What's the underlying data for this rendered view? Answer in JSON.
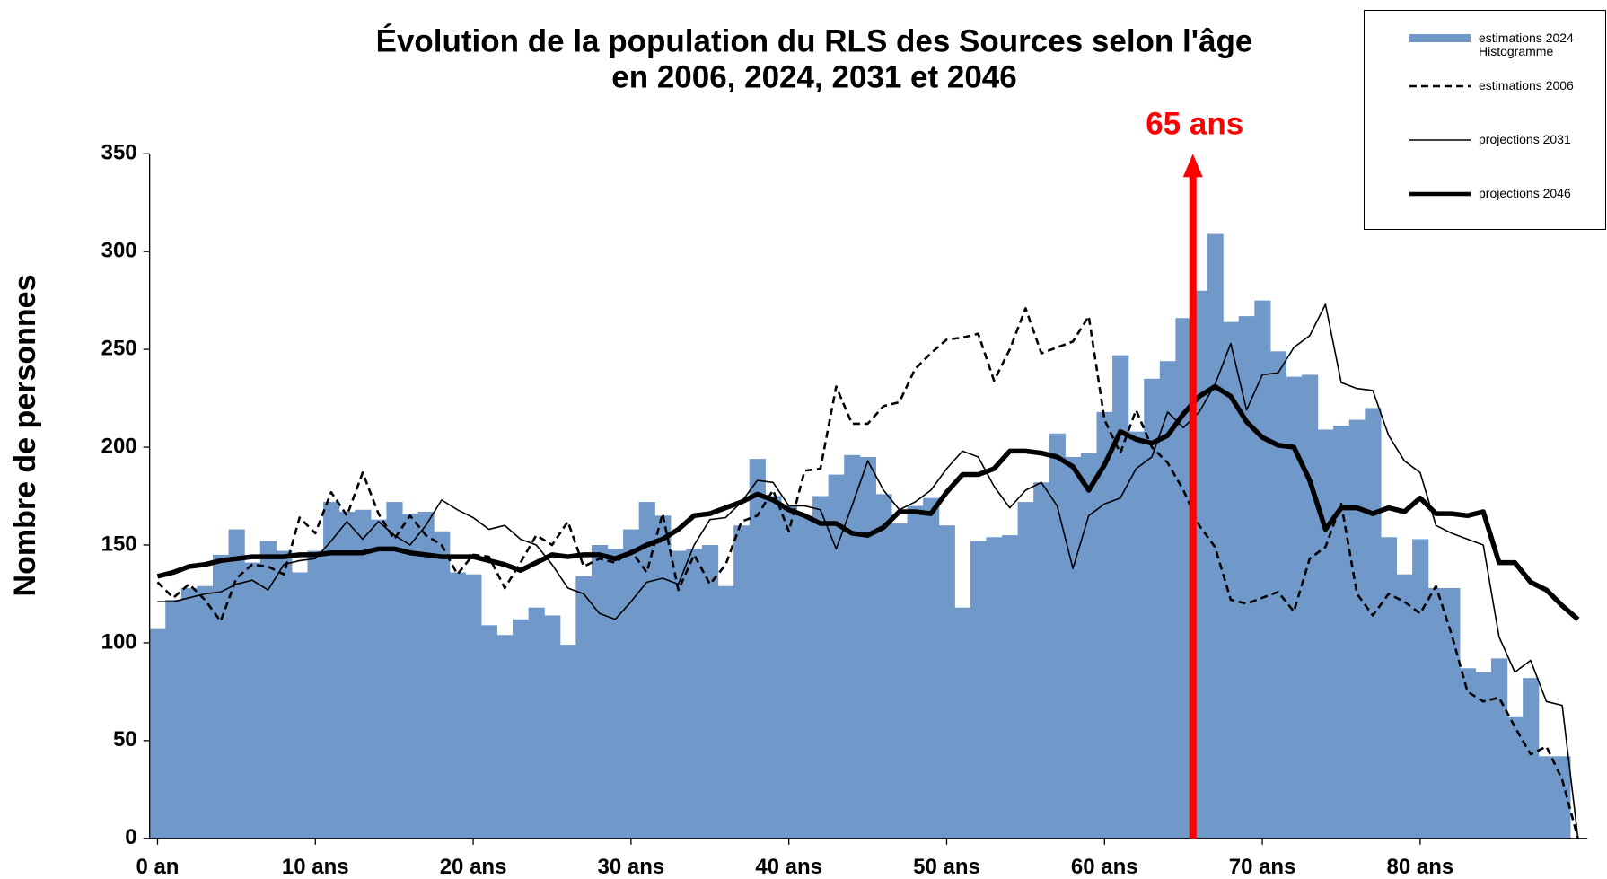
{
  "chart_data": {
    "type": "bar",
    "title": "Évolution de la population du RLS des Sources selon l'âge",
    "subtitle": "en 2006, 2024, 2031 et 2046",
    "ylabel": "Nombre de personnes",
    "x": [
      0,
      1,
      2,
      3,
      4,
      5,
      6,
      7,
      8,
      9,
      10,
      11,
      12,
      13,
      14,
      15,
      16,
      17,
      18,
      19,
      20,
      21,
      22,
      23,
      24,
      25,
      26,
      27,
      28,
      29,
      30,
      31,
      32,
      33,
      34,
      35,
      36,
      37,
      38,
      39,
      40,
      41,
      42,
      43,
      44,
      45,
      46,
      47,
      48,
      49,
      50,
      51,
      52,
      53,
      54,
      55,
      56,
      57,
      58,
      59,
      60,
      61,
      62,
      63,
      64,
      65,
      66,
      67,
      68,
      69,
      70,
      71,
      72,
      73,
      74,
      75,
      76,
      77,
      78,
      79,
      80,
      81,
      82,
      83,
      84,
      85,
      86,
      87,
      88,
      89,
      90
    ],
    "xlim": [
      -0.5,
      90.6
    ],
    "xticks": [
      {
        "value": 0,
        "label": "0 an"
      },
      {
        "value": 10,
        "label": "10 ans"
      },
      {
        "value": 20,
        "label": "20 ans"
      },
      {
        "value": 30,
        "label": "30 ans"
      },
      {
        "value": 40,
        "label": "40 ans"
      },
      {
        "value": 50,
        "label": "50 ans"
      },
      {
        "value": 60,
        "label": "60 ans"
      },
      {
        "value": 70,
        "label": "70 ans"
      },
      {
        "value": 80,
        "label": "80 ans"
      }
    ],
    "ylim": [
      0,
      350
    ],
    "yticks": [
      0,
      50,
      100,
      150,
      200,
      250,
      300,
      350
    ],
    "legend": "upper right",
    "series": [
      {
        "name": "estimations 2024 Histogramme",
        "type": "bar",
        "color": "#7099ca",
        "values": [
          107,
          122,
          128,
          129,
          145,
          158,
          141,
          152,
          147,
          136,
          147,
          172,
          167,
          168,
          163,
          172,
          166,
          167,
          157,
          136,
          135,
          109,
          104,
          112,
          118,
          114,
          99,
          134,
          150,
          148,
          158,
          172,
          165,
          147,
          148,
          150,
          129,
          160,
          194,
          175,
          170,
          165,
          175,
          186,
          196,
          195,
          176,
          161,
          170,
          174,
          160,
          118,
          152,
          154,
          155,
          172,
          182,
          207,
          195,
          197,
          218,
          247,
          208,
          235,
          244,
          266,
          280,
          309,
          264,
          267,
          275,
          249,
          236,
          237,
          209,
          211,
          214,
          220,
          154,
          135,
          153,
          128,
          128,
          87,
          85,
          92,
          62,
          82,
          42,
          42,
          null
        ]
      },
      {
        "name": "estimations 2006",
        "type": "line",
        "style": "dashed",
        "color": "#000000",
        "values": [
          131,
          123,
          130,
          122,
          111,
          133,
          140,
          139,
          135,
          164,
          156,
          177,
          165,
          187,
          166,
          153,
          165,
          155,
          150,
          135,
          145,
          144,
          128,
          141,
          155,
          150,
          162,
          139,
          143,
          141,
          147,
          136,
          166,
          127,
          145,
          130,
          140,
          162,
          165,
          178,
          157,
          188,
          189,
          231,
          212,
          212,
          221,
          223,
          240,
          248,
          255,
          256,
          258,
          234,
          250,
          271,
          248,
          251,
          254,
          267,
          214,
          197,
          219,
          200,
          192,
          178,
          160,
          149,
          122,
          120,
          123,
          126,
          116,
          143,
          149,
          171,
          125,
          114,
          125,
          121,
          115,
          129,
          104,
          75,
          70,
          72,
          57,
          43,
          47,
          30,
          0
        ]
      },
      {
        "name": "projections 2031",
        "type": "line",
        "style": "thin",
        "color": "#000000",
        "values": [
          121,
          121,
          123,
          125,
          126,
          130,
          132,
          127,
          140,
          142,
          143,
          152,
          162,
          153,
          162,
          155,
          150,
          160,
          173,
          168,
          164,
          158,
          160,
          153,
          150,
          140,
          128,
          125,
          115,
          112,
          121,
          131,
          133,
          130,
          150,
          163,
          164,
          172,
          183,
          182,
          170,
          170,
          168,
          148,
          170,
          193,
          178,
          168,
          172,
          178,
          189,
          198,
          195,
          180,
          169,
          178,
          182,
          170,
          138,
          165,
          171,
          174,
          189,
          195,
          218,
          210,
          218,
          232,
          253,
          219,
          237,
          238,
          251,
          257,
          273,
          233,
          230,
          229,
          206,
          193,
          187,
          160,
          156,
          153,
          150,
          103,
          85,
          91,
          70,
          68,
          0
        ]
      },
      {
        "name": "projections 2046",
        "type": "line",
        "style": "thick",
        "color": "#000000",
        "values": [
          134,
          136,
          139,
          140,
          142,
          143,
          144,
          144,
          144,
          145,
          145,
          146,
          146,
          146,
          148,
          148,
          146,
          145,
          144,
          144,
          144,
          142,
          140,
          137,
          141,
          145,
          144,
          145,
          145,
          143,
          146,
          150,
          153,
          158,
          165,
          166,
          169,
          172,
          176,
          173,
          168,
          165,
          161,
          161,
          156,
          155,
          159,
          167,
          167,
          166,
          177,
          186,
          186,
          189,
          198,
          198,
          197,
          195,
          190,
          178,
          191,
          208,
          204,
          202,
          206,
          217,
          226,
          231,
          226,
          213,
          205,
          201,
          200,
          183,
          158,
          169,
          169,
          166,
          169,
          167,
          174,
          166,
          166,
          165,
          167,
          141,
          141,
          131,
          127,
          119,
          112
        ]
      }
    ],
    "annotations": [
      {
        "text": "65 ans",
        "x": 65.6,
        "color": "#ff0000"
      }
    ]
  }
}
